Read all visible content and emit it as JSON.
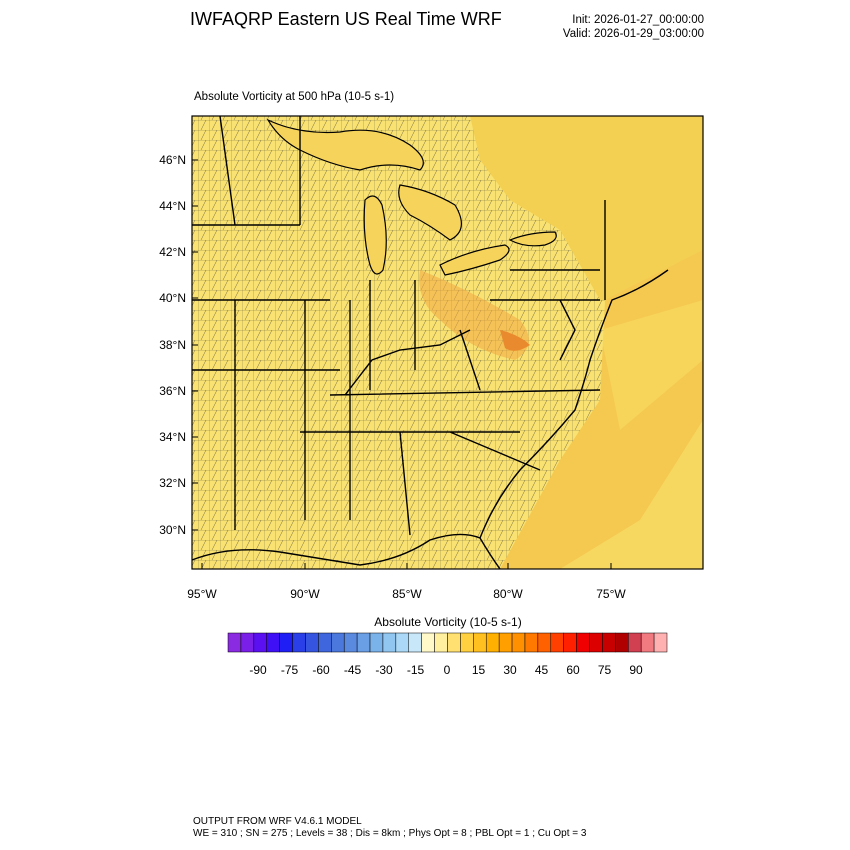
{
  "header": {
    "title": "IWFAQRP Eastern US Real Time WRF",
    "init": "Init: 2026-01-27_00:00:00",
    "valid": "Valid: 2026-01-29_03:00:00"
  },
  "map": {
    "subtitle": "Absolute Vorticity at 500 hPa   (10-5 s-1)",
    "lat_labels": [
      "46°N",
      "44°N",
      "42°N",
      "40°N",
      "38°N",
      "36°N",
      "34°N",
      "32°N",
      "30°N"
    ],
    "lon_labels": [
      "95°W",
      "90°W",
      "85°W",
      "80°W",
      "75°W"
    ],
    "background_color": "#f6d860",
    "land_color": "#f9e272",
    "max_color": "#e98a2e"
  },
  "colorbar": {
    "title": "Absolute Vorticity  (10-5 s-1)",
    "tick_labels": [
      "-90",
      "-75",
      "-60",
      "-45",
      "-30",
      "-15",
      "0",
      "15",
      "30",
      "45",
      "60",
      "75",
      "90"
    ],
    "colors": [
      "#8a2be2",
      "#7a1fe8",
      "#5a10f0",
      "#3f10f5",
      "#1f1ff5",
      "#2a3fe8",
      "#3555e0",
      "#3f66dd",
      "#4a78dd",
      "#5a8ae0",
      "#6a9ee5",
      "#7ab2ea",
      "#90c6f0",
      "#aad8f6",
      "#c8e8fa",
      "#fff8c8",
      "#fff0a0",
      "#ffe070",
      "#ffd040",
      "#ffc020",
      "#ffb000",
      "#ffa000",
      "#ff9000",
      "#ff7800",
      "#ff6000",
      "#ff4000",
      "#ff2000",
      "#f00000",
      "#dc0000",
      "#c80000",
      "#b00000",
      "#d04050",
      "#f07a80",
      "#ffb0b0"
    ]
  },
  "footer": {
    "line1": "OUTPUT FROM WRF V4.6.1 MODEL",
    "line2": "WE = 310 ; SN = 275 ; Levels = 38 ; Dis = 8km ; Phys Opt = 8 ; PBL Opt = 1 ; Cu Opt = 3"
  }
}
